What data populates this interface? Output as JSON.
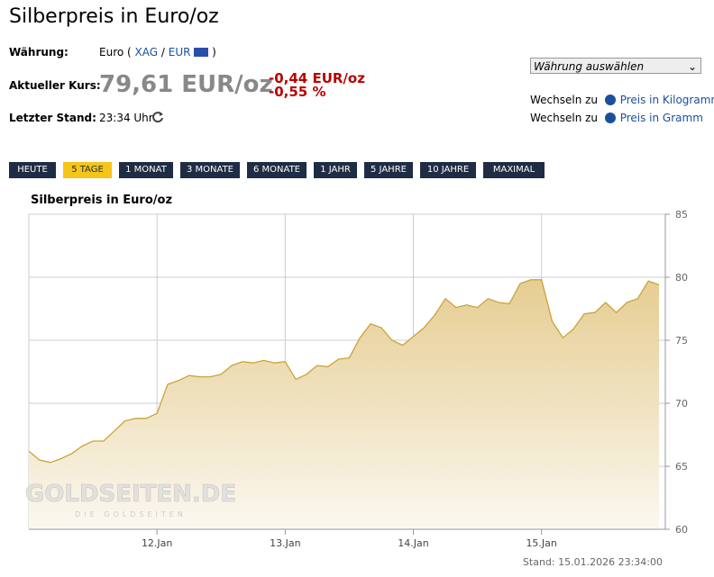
{
  "header": {
    "title": "Silberpreis in Euro/oz",
    "currency_label": "Währung:",
    "currency_prefix": "Euro (",
    "currency_code": "XAG",
    "separator": "/",
    "currency_eur": "EUR",
    "currency_suffix": ")",
    "price_label": "Aktueller Kurs:",
    "price": "79,61 EUR/oz",
    "change_abs": "-0,44 EUR/oz",
    "change_pct": "-0,55 %",
    "time_label": "Letzter Stand:",
    "time": "23:34 Uhr"
  },
  "sidebar": {
    "select": "Währung auswählen",
    "links": [
      {
        "prefix": "Wechseln zu",
        "text": "Preis in Kilogramm"
      },
      {
        "prefix": "Wechseln zu",
        "text": "Preis in Gramm"
      }
    ]
  },
  "buttons": [
    "HEUTE",
    "5 TAGE",
    "1 MONAT",
    "3 MONATE",
    "6 MONATE",
    "1 JAHR",
    "5 JAHRE",
    "10 JAHRE",
    "MAXIMAL"
  ],
  "chart_data": {
    "type": "area",
    "title": "Silberpreis in Euro/oz",
    "categories": [
      null,
      null,
      null,
      null,
      null,
      null,
      null,
      null,
      null,
      null,
      null,
      null,
      "12.Jan",
      null,
      null,
      null,
      null,
      null,
      null,
      null,
      null,
      null,
      null,
      null,
      "13.Jan",
      null,
      null,
      null,
      null,
      null,
      null,
      null,
      null,
      null,
      null,
      null,
      "14.Jan",
      null,
      null,
      null,
      null,
      null,
      null,
      null,
      null,
      null,
      null,
      null,
      "15.Jan",
      null,
      null,
      null,
      null,
      null,
      null,
      null,
      null,
      null,
      null,
      null
    ],
    "series": [
      {
        "name": "Silberpreis",
        "color": "#c9a33a",
        "values": [
          66.2,
          65.5,
          65.3,
          65.6,
          66.0,
          66.6,
          67.0,
          67.0,
          67.8,
          68.6,
          68.8,
          68.8,
          69.2,
          71.5,
          71.8,
          72.2,
          72.1,
          72.1,
          72.3,
          73.0,
          73.3,
          73.2,
          73.4,
          73.2,
          73.3,
          71.9,
          72.3,
          73.0,
          72.9,
          73.5,
          73.6,
          75.2,
          76.3,
          76.0,
          75.0,
          74.6,
          75.3,
          76.0,
          77.0,
          78.3,
          77.6,
          77.8,
          77.6,
          78.3,
          78.0,
          77.9,
          79.5,
          79.8,
          79.8,
          76.5,
          75.2,
          75.9,
          77.1,
          77.2,
          78.0,
          77.2,
          78.0,
          78.3,
          79.7,
          79.4
        ]
      }
    ],
    "ylim": [
      60,
      85
    ],
    "yticks": [
      60,
      65,
      70,
      75,
      80,
      85
    ],
    "grid": true,
    "watermark": "GOLDSEITEN.DE",
    "watermark_sub": "DIE GOLDSEITEN",
    "footer": "Stand: 15.01.2026 23:34:00"
  }
}
